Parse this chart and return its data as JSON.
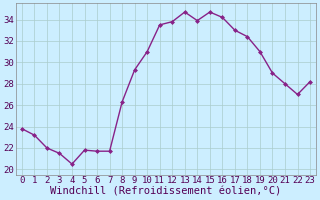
{
  "x": [
    0,
    1,
    2,
    3,
    4,
    5,
    6,
    7,
    8,
    9,
    10,
    11,
    12,
    13,
    14,
    15,
    16,
    17,
    18,
    19,
    20,
    21,
    22,
    23
  ],
  "y": [
    23.8,
    23.2,
    22.0,
    21.5,
    20.5,
    21.8,
    21.7,
    21.7,
    26.3,
    29.3,
    31.0,
    33.5,
    33.8,
    34.7,
    33.9,
    34.7,
    34.2,
    33.0,
    32.4,
    31.0,
    29.0,
    28.0,
    27.0,
    28.2
  ],
  "line_color": "#882288",
  "marker": "D",
  "marker_size": 2.0,
  "bg_color": "#cceeff",
  "grid_color": "#aacccc",
  "xlabel": "Windchill (Refroidissement éolien,°C)",
  "xlabel_fontsize": 7.5,
  "yticks": [
    20,
    22,
    24,
    26,
    28,
    30,
    32,
    34
  ],
  "xticks": [
    0,
    1,
    2,
    3,
    4,
    5,
    6,
    7,
    8,
    9,
    10,
    11,
    12,
    13,
    14,
    15,
    16,
    17,
    18,
    19,
    20,
    21,
    22,
    23
  ],
  "ylim": [
    19.5,
    35.5
  ],
  "xlim": [
    -0.5,
    23.5
  ],
  "tick_fontsize": 6.5,
  "linewidth": 1.0
}
